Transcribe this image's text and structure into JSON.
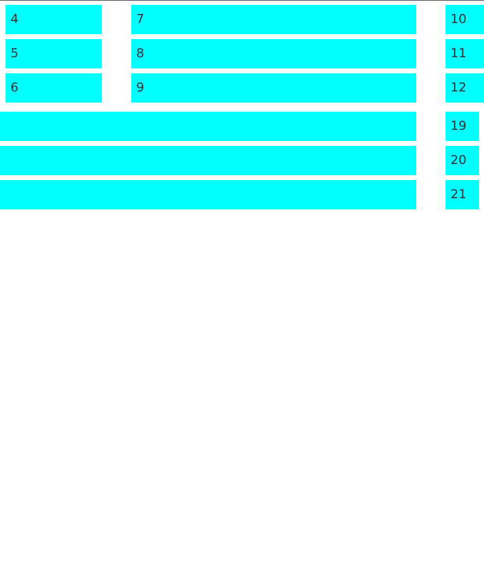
{
  "grid_top": {
    "rows": [
      {
        "col1": "4",
        "col2": "7",
        "col3": "10"
      },
      {
        "col1": "5",
        "col2": "8",
        "col3": "11"
      },
      {
        "col1": "6",
        "col2": "9",
        "col3": "12"
      }
    ]
  },
  "grid_bottom": {
    "rows": [
      {
        "col1": "",
        "col2": "19"
      },
      {
        "col1": "",
        "col2": "20"
      },
      {
        "col1": "",
        "col2": "21"
      }
    ]
  },
  "colors": {
    "cell_background": "#00ffff",
    "text": "#333333",
    "page_background": "#ffffff"
  }
}
